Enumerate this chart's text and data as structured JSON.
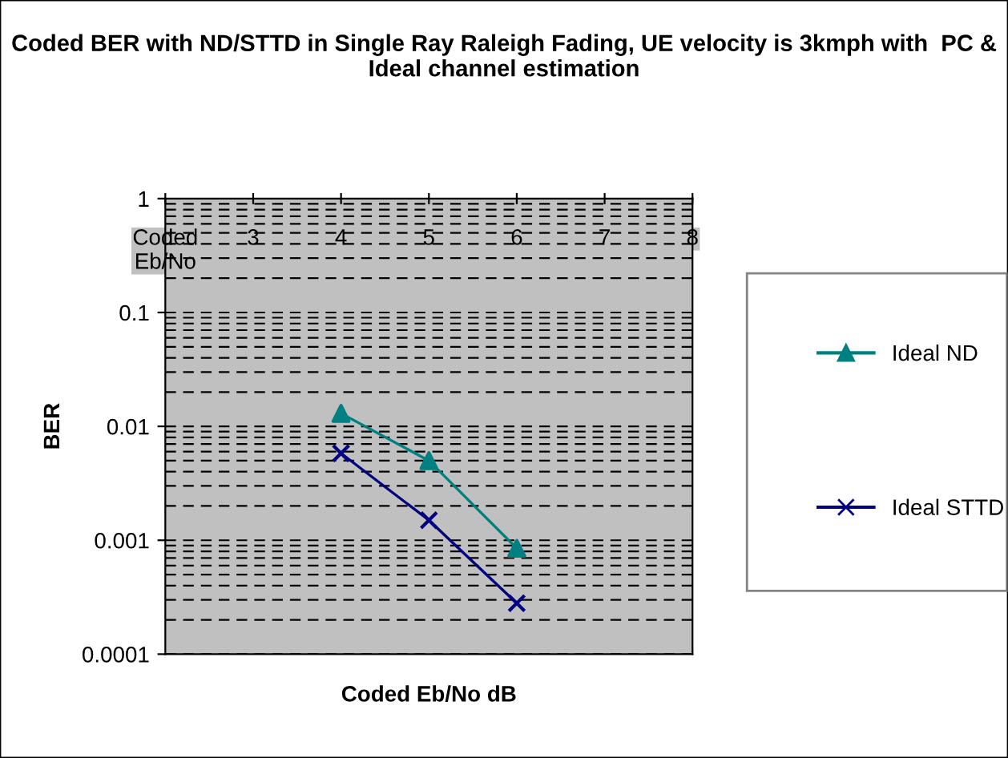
{
  "chart_data": {
    "type": "line",
    "title": "Coded BER with ND/STTD in Single Ray Raleigh Fading, UE velocity is 3kmph with  PC & Ideal channel estimation",
    "xlabel": "Coded Eb/No dB",
    "ylabel": "BER",
    "xlim": [
      2,
      8
    ],
    "xticks": [
      {
        "value": 2,
        "label": "Coded Eb/No"
      },
      3,
      4,
      5,
      6,
      7,
      8
    ],
    "ylim": [
      0.0001,
      1
    ],
    "yticks": [
      0.0001,
      0.001,
      0.01,
      0.1,
      1
    ],
    "log": "y",
    "x": [
      4,
      5,
      6
    ],
    "series": [
      {
        "name": "Ideal ND",
        "color": "#008080",
        "marker": "triangle",
        "values": [
          0.013,
          0.005,
          0.00085
        ]
      },
      {
        "name": "Ideal STTD",
        "color": "#000080",
        "marker": "cross",
        "values": [
          0.0058,
          0.0015,
          0.00028
        ]
      }
    ],
    "grid": "y",
    "line_style": "solid",
    "legend": "right"
  }
}
